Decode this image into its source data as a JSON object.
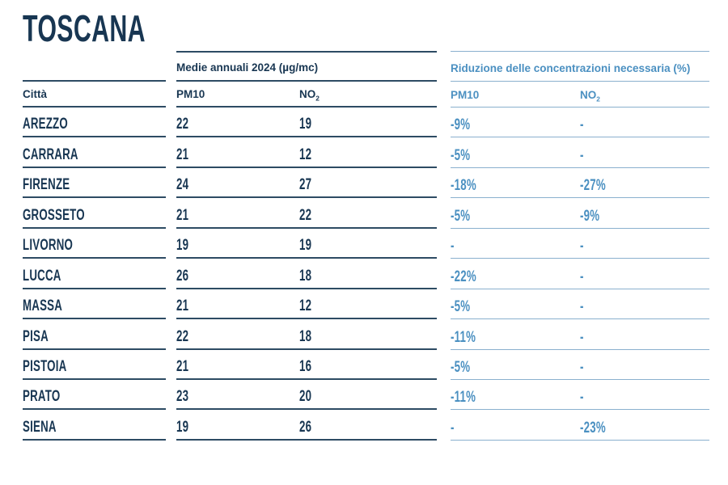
{
  "page": {
    "title": "TOSCANA"
  },
  "colors": {
    "ink": "#183652",
    "ink-line": "#2d4b63",
    "blue": "#4b90c1",
    "blue-line": "#8ab0ce",
    "bg": "#ffffff"
  },
  "table": {
    "group_headers": {
      "left": "Medie annuali 2024 (µg/mc)",
      "right": "Riduzione delle concentrazioni necessaria (%)"
    },
    "columns": {
      "city": "Città",
      "pm10": "PM10",
      "no2_base": "NO",
      "no2_sub": "2"
    },
    "rows": [
      {
        "city": "AREZZO",
        "pm10": "22",
        "no2": "19",
        "red_pm10": "-9%",
        "red_no2": "-"
      },
      {
        "city": "CARRARA",
        "pm10": "21",
        "no2": "12",
        "red_pm10": "-5%",
        "red_no2": "-"
      },
      {
        "city": "FIRENZE",
        "pm10": "24",
        "no2": "27",
        "red_pm10": "-18%",
        "red_no2": "-27%"
      },
      {
        "city": "GROSSETO",
        "pm10": "21",
        "no2": "22",
        "red_pm10": "-5%",
        "red_no2": "-9%"
      },
      {
        "city": "LIVORNO",
        "pm10": "19",
        "no2": "19",
        "red_pm10": "-",
        "red_no2": "-"
      },
      {
        "city": "LUCCA",
        "pm10": "26",
        "no2": "18",
        "red_pm10": "-22%",
        "red_no2": "-"
      },
      {
        "city": "MASSA",
        "pm10": "21",
        "no2": "12",
        "red_pm10": "-5%",
        "red_no2": "-"
      },
      {
        "city": "PISA",
        "pm10": "22",
        "no2": "18",
        "red_pm10": "-11%",
        "red_no2": "-"
      },
      {
        "city": "PISTOIA",
        "pm10": "21",
        "no2": "16",
        "red_pm10": "-5%",
        "red_no2": "-"
      },
      {
        "city": "PRATO",
        "pm10": "23",
        "no2": "20",
        "red_pm10": "-11%",
        "red_no2": "-"
      },
      {
        "city": "SIENA",
        "pm10": "19",
        "no2": "26",
        "red_pm10": "-",
        "red_no2": "-23%"
      }
    ]
  }
}
